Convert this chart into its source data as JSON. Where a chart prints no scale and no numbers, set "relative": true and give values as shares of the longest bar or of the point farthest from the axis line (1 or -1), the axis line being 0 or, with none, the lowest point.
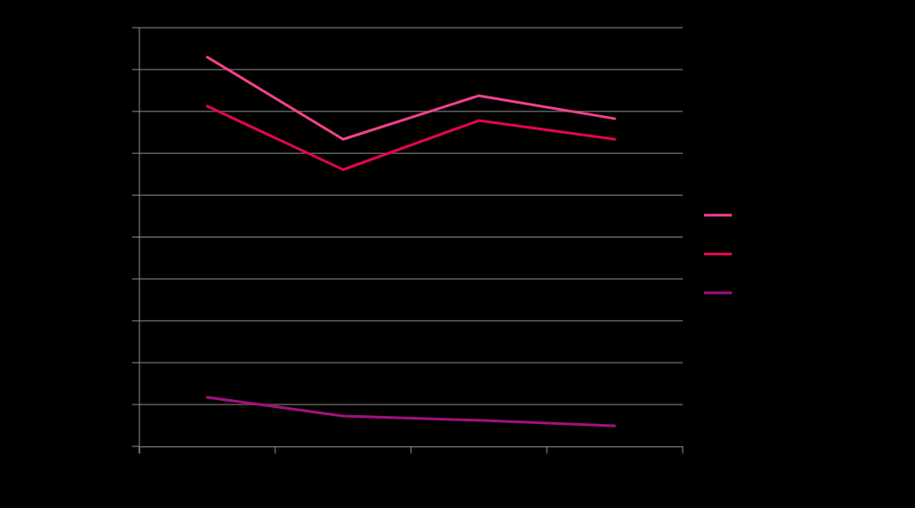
{
  "chart_data": {
    "type": "line",
    "relative": true,
    "categories": [
      null,
      null,
      null,
      null
    ],
    "grid": "y",
    "series": [
      {
        "color": "#f2428c",
        "values": [
          1,
          0.789,
          0.901,
          0.842
        ]
      },
      {
        "color": "#e0064f",
        "values": [
          0.874,
          0.711,
          0.837,
          0.789
        ]
      },
      {
        "color": "#a3117e",
        "values": [
          0.126,
          0.078,
          0.067,
          0.053
        ]
      }
    ]
  }
}
